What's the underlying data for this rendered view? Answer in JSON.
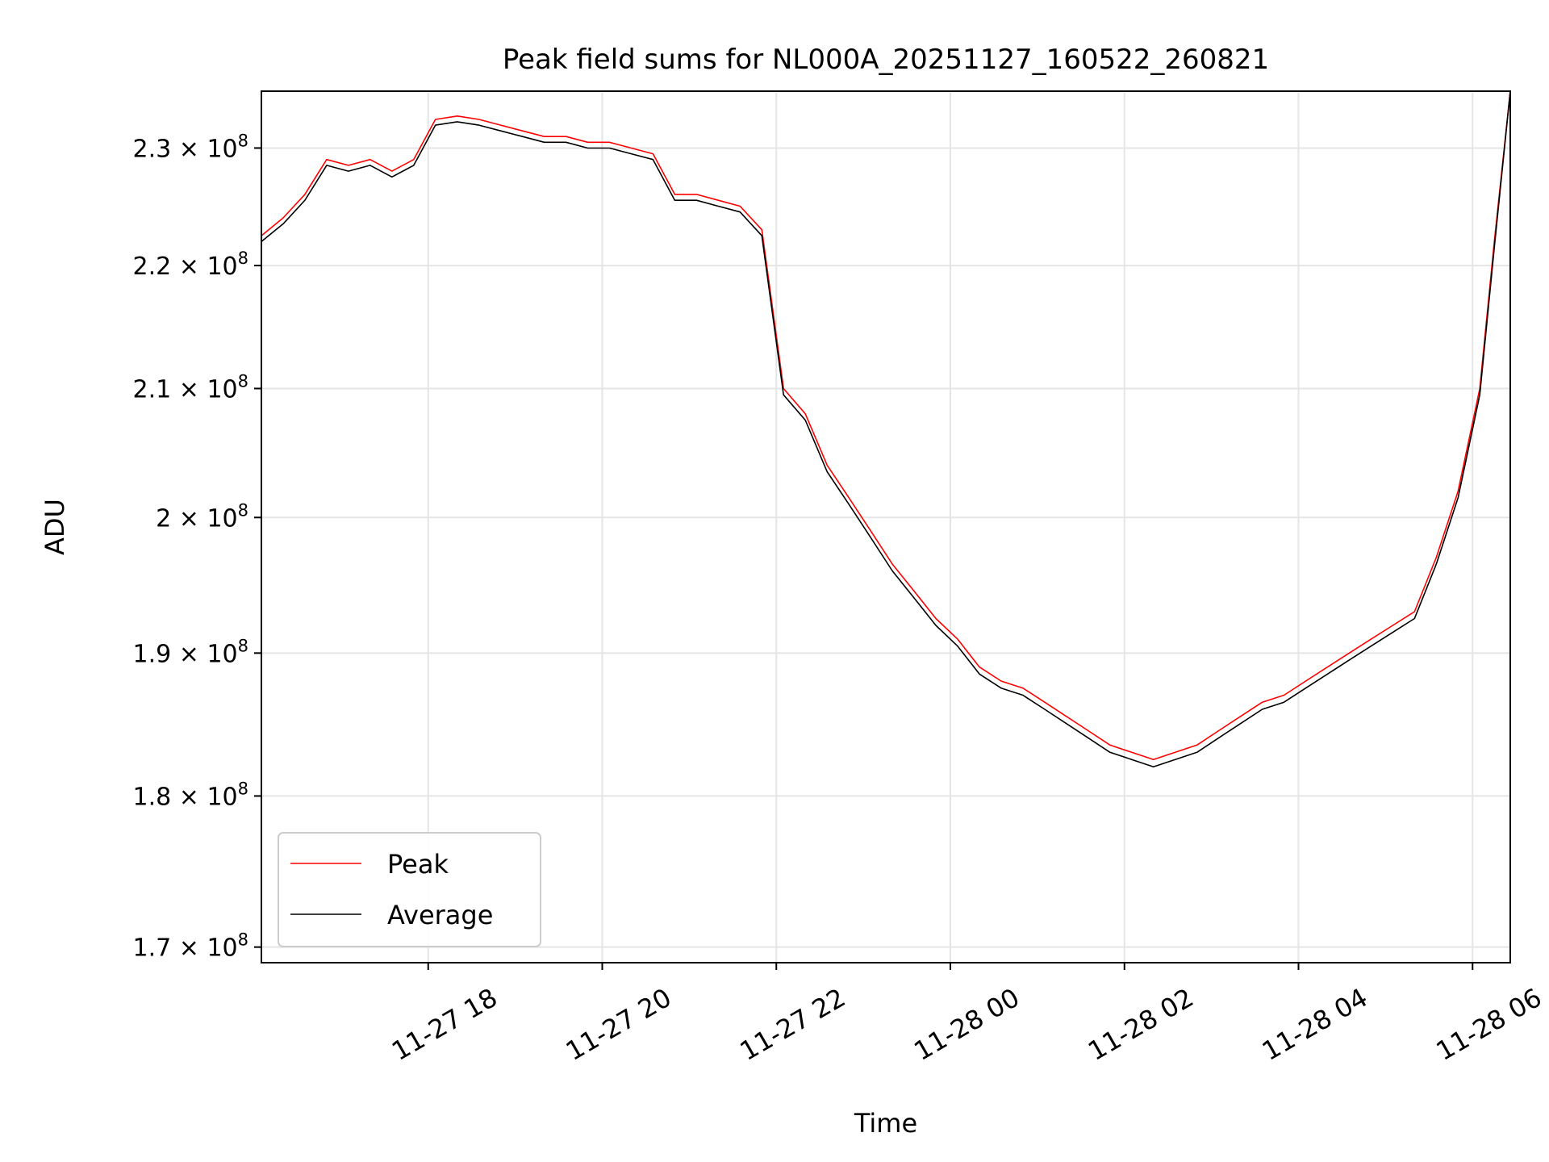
{
  "chart_data": {
    "type": "line",
    "title": "Peak field sums for NL000A_20251127_160522_260821",
    "xlabel": "Time",
    "ylabel": "ADU",
    "y_scale": "log",
    "grid": true,
    "legend_position": "lower left",
    "xlim": [
      "2025-11-27 16:05",
      "2025-11-28 06:26"
    ],
    "ylim": [
      169000000,
      235000000
    ],
    "x_ticks": [
      {
        "value": "2025-11-27 18:00",
        "label": "11-27 18"
      },
      {
        "value": "2025-11-27 20:00",
        "label": "11-27 20"
      },
      {
        "value": "2025-11-27 22:00",
        "label": "11-27 22"
      },
      {
        "value": "2025-11-28 00:00",
        "label": "11-28 00"
      },
      {
        "value": "2025-11-28 02:00",
        "label": "11-28 02"
      },
      {
        "value": "2025-11-28 04:00",
        "label": "11-28 04"
      },
      {
        "value": "2025-11-28 06:00",
        "label": "11-28 06"
      }
    ],
    "y_ticks": [
      {
        "value": 170000000,
        "mantissa": "1.7",
        "exponent": "8"
      },
      {
        "value": 180000000,
        "mantissa": "1.8",
        "exponent": "8"
      },
      {
        "value": 190000000,
        "mantissa": "1.9",
        "exponent": "8"
      },
      {
        "value": 200000000,
        "mantissa": "2",
        "exponent": "8"
      },
      {
        "value": 210000000,
        "mantissa": "2.1",
        "exponent": "8"
      },
      {
        "value": 220000000,
        "mantissa": "2.2",
        "exponent": "8"
      },
      {
        "value": 230000000,
        "mantissa": "2.3",
        "exponent": "8"
      }
    ],
    "series": [
      {
        "name": "Peak",
        "color": "#ff0000",
        "x": [
          "2025-11-27 16:05",
          "2025-11-27 16:20",
          "2025-11-27 16:35",
          "2025-11-27 16:50",
          "2025-11-27 17:05",
          "2025-11-27 17:20",
          "2025-11-27 17:35",
          "2025-11-27 17:50",
          "2025-11-27 18:05",
          "2025-11-27 18:20",
          "2025-11-27 18:35",
          "2025-11-27 18:50",
          "2025-11-27 19:05",
          "2025-11-27 19:20",
          "2025-11-27 19:35",
          "2025-11-27 19:50",
          "2025-11-27 20:05",
          "2025-11-27 20:20",
          "2025-11-27 20:35",
          "2025-11-27 20:50",
          "2025-11-27 21:05",
          "2025-11-27 21:20",
          "2025-11-27 21:35",
          "2025-11-27 21:50",
          "2025-11-27 22:05",
          "2025-11-27 22:20",
          "2025-11-27 22:35",
          "2025-11-27 22:50",
          "2025-11-27 23:05",
          "2025-11-27 23:20",
          "2025-11-27 23:35",
          "2025-11-27 23:50",
          "2025-11-28 00:05",
          "2025-11-28 00:20",
          "2025-11-28 00:35",
          "2025-11-28 00:50",
          "2025-11-28 01:05",
          "2025-11-28 01:20",
          "2025-11-28 01:35",
          "2025-11-28 01:50",
          "2025-11-28 02:05",
          "2025-11-28 02:20",
          "2025-11-28 02:35",
          "2025-11-28 02:50",
          "2025-11-28 03:05",
          "2025-11-28 03:20",
          "2025-11-28 03:35",
          "2025-11-28 03:50",
          "2025-11-28 04:05",
          "2025-11-28 04:20",
          "2025-11-28 04:35",
          "2025-11-28 04:50",
          "2025-11-28 05:05",
          "2025-11-28 05:20",
          "2025-11-28 05:35",
          "2025-11-28 05:50",
          "2025-11-28 06:05",
          "2025-11-28 06:15",
          "2025-11-28 06:26"
        ],
        "values": [
          222500000,
          224000000,
          226000000,
          229000000,
          228500000,
          229000000,
          228000000,
          229000000,
          232500000,
          232800000,
          232500000,
          232000000,
          231500000,
          231000000,
          231000000,
          230500000,
          230500000,
          230000000,
          229500000,
          226000000,
          226000000,
          225500000,
          225000000,
          223000000,
          210000000,
          208000000,
          204000000,
          201500000,
          199000000,
          196500000,
          194500000,
          192500000,
          191000000,
          189000000,
          188000000,
          187500000,
          186500000,
          185500000,
          184500000,
          183500000,
          183000000,
          182500000,
          183000000,
          183500000,
          184500000,
          185500000,
          186500000,
          187000000,
          188000000,
          189000000,
          190000000,
          191000000,
          192000000,
          193000000,
          197000000,
          202000000,
          210000000,
          222000000,
          235000000
        ]
      },
      {
        "name": "Average",
        "color": "#000000",
        "x": [
          "2025-11-27 16:05",
          "2025-11-27 16:20",
          "2025-11-27 16:35",
          "2025-11-27 16:50",
          "2025-11-27 17:05",
          "2025-11-27 17:20",
          "2025-11-27 17:35",
          "2025-11-27 17:50",
          "2025-11-27 18:05",
          "2025-11-27 18:20",
          "2025-11-27 18:35",
          "2025-11-27 18:50",
          "2025-11-27 19:05",
          "2025-11-27 19:20",
          "2025-11-27 19:35",
          "2025-11-27 19:50",
          "2025-11-27 20:05",
          "2025-11-27 20:20",
          "2025-11-27 20:35",
          "2025-11-27 20:50",
          "2025-11-27 21:05",
          "2025-11-27 21:20",
          "2025-11-27 21:35",
          "2025-11-27 21:50",
          "2025-11-27 22:05",
          "2025-11-27 22:20",
          "2025-11-27 22:35",
          "2025-11-27 22:50",
          "2025-11-27 23:05",
          "2025-11-27 23:20",
          "2025-11-27 23:35",
          "2025-11-27 23:50",
          "2025-11-28 00:05",
          "2025-11-28 00:20",
          "2025-11-28 00:35",
          "2025-11-28 00:50",
          "2025-11-28 01:05",
          "2025-11-28 01:20",
          "2025-11-28 01:35",
          "2025-11-28 01:50",
          "2025-11-28 02:05",
          "2025-11-28 02:20",
          "2025-11-28 02:35",
          "2025-11-28 02:50",
          "2025-11-28 03:05",
          "2025-11-28 03:20",
          "2025-11-28 03:35",
          "2025-11-28 03:50",
          "2025-11-28 04:05",
          "2025-11-28 04:20",
          "2025-11-28 04:35",
          "2025-11-28 04:50",
          "2025-11-28 05:05",
          "2025-11-28 05:20",
          "2025-11-28 05:35",
          "2025-11-28 05:50",
          "2025-11-28 06:05",
          "2025-11-28 06:15",
          "2025-11-28 06:26"
        ],
        "values": [
          222000000,
          223500000,
          225500000,
          228500000,
          228000000,
          228500000,
          227500000,
          228500000,
          232000000,
          232300000,
          232000000,
          231500000,
          231000000,
          230500000,
          230500000,
          230000000,
          230000000,
          229500000,
          229000000,
          225500000,
          225500000,
          225000000,
          224500000,
          222500000,
          209500000,
          207500000,
          203500000,
          201000000,
          198500000,
          196000000,
          194000000,
          192000000,
          190500000,
          188500000,
          187500000,
          187000000,
          186000000,
          185000000,
          184000000,
          183000000,
          182500000,
          182000000,
          182500000,
          183000000,
          184000000,
          185000000,
          186000000,
          186500000,
          187500000,
          188500000,
          189500000,
          190500000,
          191500000,
          192500000,
          196500000,
          201500000,
          209500000,
          221500000,
          235000000
        ]
      }
    ]
  }
}
